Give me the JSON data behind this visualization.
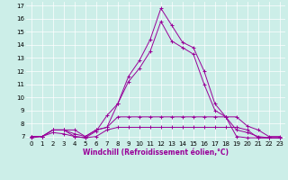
{
  "xlabel": "Windchill (Refroidissement éolien,°C)",
  "background_color": "#cceee8",
  "line_color": "#990099",
  "xlim": [
    -0.5,
    23.5
  ],
  "ylim": [
    6.7,
    17.3
  ],
  "yticks": [
    7,
    8,
    9,
    10,
    11,
    12,
    13,
    14,
    15,
    16,
    17
  ],
  "xticks": [
    0,
    1,
    2,
    3,
    4,
    5,
    6,
    7,
    8,
    9,
    10,
    11,
    12,
    13,
    14,
    15,
    16,
    17,
    18,
    19,
    20,
    21,
    22,
    23
  ],
  "series": [
    {
      "x": [
        0,
        1,
        2,
        3,
        4,
        5,
        6,
        7,
        8,
        9,
        10,
        11,
        12,
        13,
        14,
        15,
        16,
        17,
        18,
        19,
        20,
        21,
        22,
        23
      ],
      "y": [
        6.9,
        7.0,
        7.5,
        7.5,
        7.0,
        6.9,
        7.4,
        8.6,
        9.5,
        11.6,
        12.8,
        14.4,
        16.8,
        15.5,
        14.2,
        13.8,
        12.0,
        9.5,
        8.5,
        7.0,
        6.9,
        6.9,
        6.9,
        6.9
      ]
    },
    {
      "x": [
        0,
        1,
        2,
        3,
        4,
        5,
        6,
        7,
        8,
        9,
        10,
        11,
        12,
        13,
        14,
        15,
        16,
        17,
        18,
        19,
        20,
        21,
        22,
        23
      ],
      "y": [
        7.0,
        7.0,
        7.5,
        7.5,
        7.5,
        7.0,
        7.5,
        7.7,
        9.5,
        11.2,
        12.2,
        13.5,
        15.8,
        14.3,
        13.8,
        13.3,
        11.0,
        9.0,
        8.5,
        7.5,
        7.3,
        7.0,
        6.9,
        6.9
      ]
    },
    {
      "x": [
        0,
        1,
        2,
        3,
        4,
        5,
        6,
        7,
        8,
        9,
        10,
        11,
        12,
        13,
        14,
        15,
        16,
        17,
        18,
        19,
        20,
        21,
        22,
        23
      ],
      "y": [
        7.0,
        7.0,
        7.5,
        7.5,
        7.2,
        7.0,
        7.5,
        7.7,
        8.5,
        8.5,
        8.5,
        8.5,
        8.5,
        8.5,
        8.5,
        8.5,
        8.5,
        8.5,
        8.5,
        8.5,
        7.8,
        7.5,
        7.0,
        7.0
      ]
    },
    {
      "x": [
        0,
        1,
        2,
        3,
        4,
        5,
        6,
        7,
        8,
        9,
        10,
        11,
        12,
        13,
        14,
        15,
        16,
        17,
        18,
        19,
        20,
        21,
        22,
        23
      ],
      "y": [
        7.0,
        7.0,
        7.3,
        7.2,
        7.0,
        6.9,
        7.0,
        7.5,
        7.7,
        7.7,
        7.7,
        7.7,
        7.7,
        7.7,
        7.7,
        7.7,
        7.7,
        7.7,
        7.7,
        7.7,
        7.5,
        6.9,
        6.9,
        6.9
      ]
    }
  ]
}
